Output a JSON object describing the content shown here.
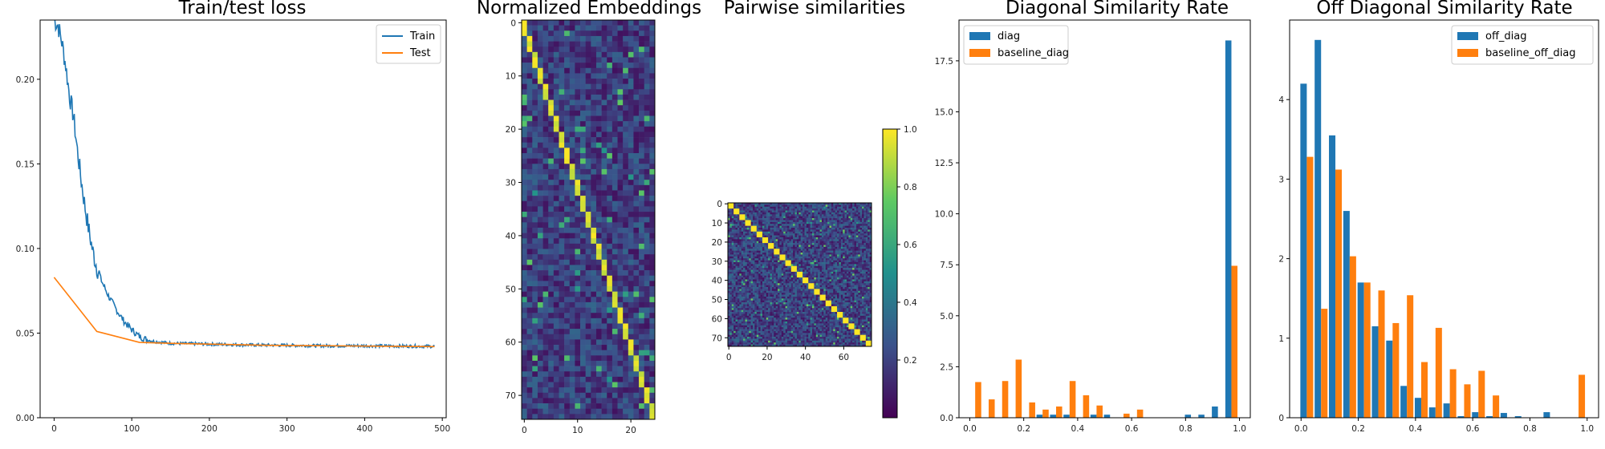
{
  "colors": {
    "blue": "#1f77b4",
    "orange": "#ff7f0e"
  },
  "chart_data": [
    {
      "type": "line",
      "title": "Train/test loss",
      "xlim": [
        -18,
        505
      ],
      "ylim": [
        0.0,
        0.235
      ],
      "xticks": [
        "0",
        "100",
        "200",
        "300",
        "400",
        "500"
      ],
      "yticks": [
        "0.00",
        "0.05",
        "0.10",
        "0.15",
        "0.20"
      ],
      "legend": "top-right",
      "series": [
        {
          "name": "Train",
          "color": "#1f77b4",
          "x": [
            0,
            5,
            10,
            15,
            20,
            25,
            30,
            35,
            40,
            45,
            50,
            55,
            60,
            70,
            80,
            90,
            100,
            110,
            120,
            130,
            150,
            200,
            250,
            300,
            350,
            400,
            450,
            490
          ],
          "y": [
            0.235,
            0.232,
            0.222,
            0.208,
            0.19,
            0.178,
            0.158,
            0.14,
            0.124,
            0.11,
            0.098,
            0.089,
            0.082,
            0.072,
            0.064,
            0.057,
            0.052,
            0.048,
            0.046,
            0.045,
            0.044,
            0.0435,
            0.043,
            0.0428,
            0.0425,
            0.0425,
            0.0423,
            0.0422
          ]
        },
        {
          "name": "Test",
          "color": "#ff7f0e",
          "x": [
            0,
            55,
            110,
            165,
            220,
            275,
            330,
            385,
            440,
            490
          ],
          "y": [
            0.083,
            0.051,
            0.0445,
            0.0438,
            0.0433,
            0.0428,
            0.0426,
            0.0424,
            0.0422,
            0.042
          ]
        }
      ]
    },
    {
      "type": "heatmap",
      "title": "Normalized Embeddings",
      "rows": 75,
      "cols": 25,
      "xticks": [
        "0",
        "10",
        "20"
      ],
      "yticks": [
        "0",
        "10",
        "20",
        "30",
        "40",
        "50",
        "60",
        "70"
      ],
      "pattern": "bright diagonal stripe descending from top-left (0,0) to bottom-right (24,74), ~3 rows per column; low values elsewhere",
      "colormap": "viridis"
    },
    {
      "type": "heatmap",
      "title": "Pairwise similarities",
      "rows": 75,
      "cols": 75,
      "xticks": [
        "0",
        "20",
        "40",
        "60"
      ],
      "yticks": [
        "0",
        "10",
        "20",
        "30",
        "40",
        "50",
        "60",
        "70"
      ],
      "pattern": "bright main diagonal (value 1.0) with low off-diagonal values",
      "colormap": "viridis",
      "colorbar": {
        "range": [
          0.0,
          1.0
        ],
        "ticks": [
          "0.2",
          "0.4",
          "0.6",
          "0.8",
          "1.0"
        ]
      }
    },
    {
      "type": "bar",
      "title": "Diagonal Similarity Rate",
      "xlim": [
        -0.04,
        1.04
      ],
      "ylim": [
        0,
        19.5
      ],
      "xticks": [
        "0.0",
        "0.2",
        "0.4",
        "0.6",
        "0.8",
        "1.0"
      ],
      "yticks": [
        "0.0",
        "2.5",
        "5.0",
        "7.5",
        "10.0",
        "12.5",
        "15.0",
        "17.5"
      ],
      "legend": "top-left",
      "bins": [
        0.02,
        0.07,
        0.12,
        0.17,
        0.22,
        0.27,
        0.32,
        0.37,
        0.42,
        0.47,
        0.52,
        0.57,
        0.62,
        0.67,
        0.72,
        0.77,
        0.82,
        0.87,
        0.92,
        0.97
      ],
      "series": [
        {
          "name": "diag",
          "color": "#1f77b4",
          "values": [
            0,
            0,
            0,
            0,
            0,
            0.15,
            0.15,
            0.15,
            0,
            0.15,
            0.15,
            0,
            0,
            0,
            0,
            0,
            0.15,
            0.15,
            0.55,
            18.5
          ]
        },
        {
          "name": "baseline_diag",
          "color": "#ff7f0e",
          "values": [
            1.75,
            0.9,
            1.8,
            2.85,
            0.75,
            0.4,
            0.55,
            1.8,
            1.1,
            0.6,
            0,
            0.2,
            0.4,
            0,
            0,
            0,
            0,
            0,
            0,
            7.45
          ]
        }
      ]
    },
    {
      "type": "bar",
      "title": "Off Diagonal Similarity Rate",
      "xlim": [
        -0.04,
        1.04
      ],
      "ylim": [
        0,
        5.0
      ],
      "xticks": [
        "0.0",
        "0.2",
        "0.4",
        "0.6",
        "0.8",
        "1.0"
      ],
      "yticks": [
        "0",
        "1",
        "2",
        "3",
        "4"
      ],
      "legend": "top-right",
      "bins": [
        0.02,
        0.07,
        0.12,
        0.17,
        0.22,
        0.27,
        0.32,
        0.37,
        0.42,
        0.47,
        0.52,
        0.57,
        0.62,
        0.67,
        0.72,
        0.77,
        0.82,
        0.87,
        0.92,
        0.97
      ],
      "series": [
        {
          "name": "off_diag",
          "color": "#1f77b4",
          "values": [
            4.2,
            4.75,
            3.55,
            2.6,
            1.7,
            1.15,
            0.97,
            0.4,
            0.25,
            0.13,
            0.18,
            0.02,
            0.07,
            0.02,
            0.06,
            0.02,
            0,
            0.07,
            0,
            0
          ]
        },
        {
          "name": "baseline_off_diag",
          "color": "#ff7f0e",
          "values": [
            3.28,
            1.37,
            3.12,
            2.03,
            1.7,
            1.6,
            1.19,
            1.54,
            0.7,
            1.13,
            0.61,
            0.42,
            0.59,
            0.28,
            0,
            0,
            0,
            0,
            0,
            0.54
          ]
        }
      ]
    }
  ]
}
